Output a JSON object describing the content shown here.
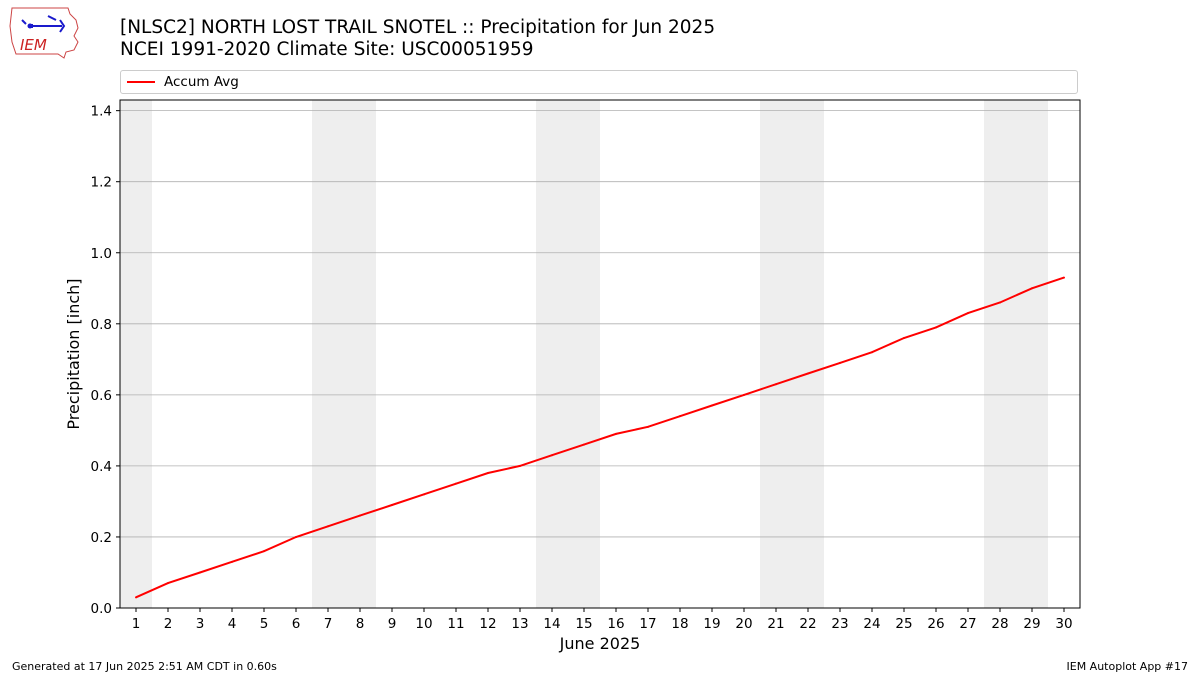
{
  "header": {
    "title_line1": "[NLSC2] NORTH LOST TRAIL SNOTEL :: Precipitation for Jun 2025",
    "title_line2": "NCEI 1991-2020 Climate Site: USC00051959"
  },
  "logo": {
    "text": "IEM"
  },
  "footer": {
    "left": "Generated at 17 Jun 2025 2:51 AM CDT in 0.60s",
    "right": "IEM Autoplot App #17"
  },
  "colors": {
    "series": "#ff0000",
    "weekend_band": "#eeeeee",
    "grid": "#b0b0b0"
  },
  "chart_data": {
    "type": "line",
    "xlabel": "June 2025",
    "ylabel": "Precipitation [inch]",
    "xlim": [
      0.5,
      30.5
    ],
    "ylim": [
      0.0,
      1.43
    ],
    "yticks": [
      0.0,
      0.2,
      0.4,
      0.6,
      0.8,
      1.0,
      1.2,
      1.4
    ],
    "ytick_labels": [
      "0.0",
      "0.2",
      "0.4",
      "0.6",
      "0.8",
      "1.0",
      "1.2",
      "1.4"
    ],
    "xticks": [
      1,
      2,
      3,
      4,
      5,
      6,
      7,
      8,
      9,
      10,
      11,
      12,
      13,
      14,
      15,
      16,
      17,
      18,
      19,
      20,
      21,
      22,
      23,
      24,
      25,
      26,
      27,
      28,
      29,
      30
    ],
    "grid": "horizontal",
    "legend_position": "top",
    "weekend_spans": [
      [
        0.5,
        1.5
      ],
      [
        6.5,
        8.5
      ],
      [
        13.5,
        15.5
      ],
      [
        20.5,
        22.5
      ],
      [
        27.5,
        29.5
      ]
    ],
    "series": [
      {
        "name": "Accum Avg",
        "x": [
          1,
          2,
          3,
          4,
          5,
          6,
          7,
          8,
          9,
          10,
          11,
          12,
          13,
          14,
          15,
          16,
          17,
          18,
          19,
          20,
          21,
          22,
          23,
          24,
          25,
          26,
          27,
          28,
          29,
          30
        ],
        "values": [
          0.03,
          0.07,
          0.1,
          0.13,
          0.16,
          0.2,
          0.23,
          0.26,
          0.29,
          0.32,
          0.35,
          0.38,
          0.4,
          0.43,
          0.46,
          0.49,
          0.51,
          0.54,
          0.57,
          0.6,
          0.63,
          0.66,
          0.69,
          0.72,
          0.76,
          0.79,
          0.83,
          0.86,
          0.9,
          0.93
        ]
      }
    ]
  }
}
